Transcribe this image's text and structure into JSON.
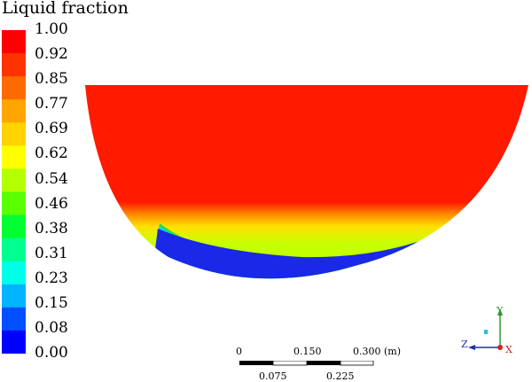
{
  "legend": {
    "title": "Liquid fraction",
    "ticks": [
      "1.00",
      "0.92",
      "0.85",
      "0.77",
      "0.69",
      "0.62",
      "0.54",
      "0.46",
      "0.38",
      "0.31",
      "0.23",
      "0.15",
      "0.08",
      "0.00"
    ],
    "colors": [
      "#ff0000",
      "#ff3300",
      "#ff6a00",
      "#ffa500",
      "#ffd200",
      "#ffff00",
      "#b4ff00",
      "#5aff00",
      "#00ff30",
      "#00ff90",
      "#00ffe8",
      "#00b4ff",
      "#0050ff",
      "#0000ff"
    ]
  },
  "scale": {
    "top_labels": [
      "0",
      "0.150",
      "0.300 (m)"
    ],
    "bottom_labels": [
      "0.075",
      "0.225"
    ]
  },
  "axes": {
    "x": "X",
    "y": "Y",
    "z": "Z"
  }
}
